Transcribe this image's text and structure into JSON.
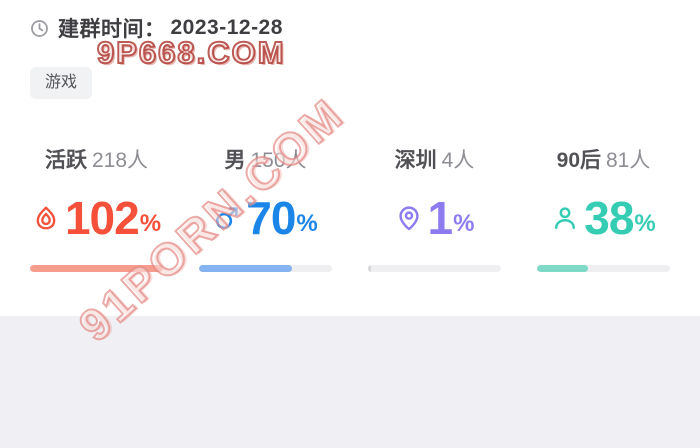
{
  "header": {
    "created_label": "建群时间：",
    "created_date": "2023-12-28"
  },
  "tag": {
    "label": "游戏"
  },
  "watermarks": {
    "horizontal": "9P668.COM",
    "diagonal": "91PORN.COM"
  },
  "colors": {
    "active_accent": "#f5503a",
    "male_accent": "#1b86e8",
    "city_accent": "#8d7cf0",
    "age_accent": "#35ccb4",
    "bar_track": "#efeff2",
    "bottom_band": "#f0f0f4"
  },
  "stats": [
    {
      "name": "活跃",
      "count": "218人",
      "percent": "102",
      "unit": "%",
      "icon": "flame-icon",
      "color": "#f5503a",
      "bar_color": "#f59c8c",
      "bar_fill": 100
    },
    {
      "name": "男",
      "count": "150人",
      "percent": "70",
      "unit": "%",
      "icon": "male-icon",
      "color": "#1b86e8",
      "bar_color": "#85b2f0",
      "bar_fill": 70
    },
    {
      "name": "深圳",
      "count": "4人",
      "percent": "1",
      "unit": "%",
      "icon": "location-pin-icon",
      "color": "#8d7cf0",
      "bar_color": "#d6d6dc",
      "bar_fill": 2
    },
    {
      "name": "90后",
      "count": "81人",
      "percent": "38",
      "unit": "%",
      "icon": "person-icon",
      "color": "#35ccb4",
      "bar_color": "#7edac6",
      "bar_fill": 38
    }
  ]
}
